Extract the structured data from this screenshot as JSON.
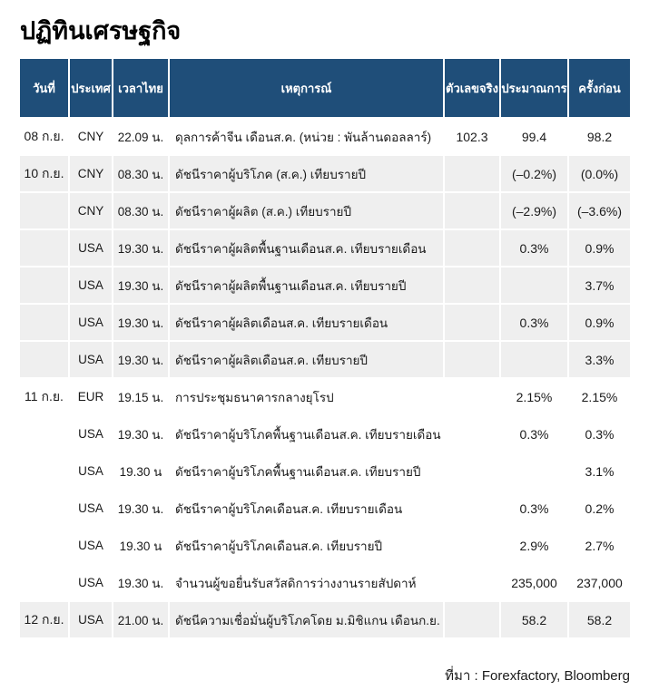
{
  "page": {
    "title": "ปฏิทินเศรษฐกิจ",
    "source_note": "ที่มา : Forexfactory, Bloomberg"
  },
  "colors": {
    "header_bg": "#1f4e79",
    "row_alt_bg": "#efefef",
    "row_bg": "#ffffff",
    "text": "#1a1a1a"
  },
  "chart_data": {
    "type": "table",
    "title": "ปฏิทินเศรษฐกิจ",
    "source": "ที่มา : Forexfactory, Bloomberg",
    "columns": [
      {
        "key": "date",
        "label": "วันที่"
      },
      {
        "key": "country",
        "label": "ประเทศ"
      },
      {
        "key": "time",
        "label": "เวลาไทย"
      },
      {
        "key": "event",
        "label": "เหตุการณ์"
      },
      {
        "key": "actual",
        "label": "ตัวเลขจริง"
      },
      {
        "key": "forecast",
        "label": "ประมาณการ"
      },
      {
        "key": "previous",
        "label": "ครั้งก่อน"
      }
    ],
    "rows": [
      {
        "date": "08 ก.ย.",
        "country": "CNY",
        "time": "22.09 น.",
        "event": "ดุลการค้าจีน เดือนส.ค. (หน่วย : พันล้านดอลลาร์)",
        "actual": "102.3",
        "forecast": "99.4",
        "previous": "98.2",
        "shaded": false
      },
      {
        "date": "10 ก.ย.",
        "country": "CNY",
        "time": "08.30 น.",
        "event": "ดัชนีราคาผู้บริโภค (ส.ค.) เทียบรายปี",
        "actual": "",
        "forecast": "(–0.2%)",
        "previous": "(0.0%)",
        "shaded": true
      },
      {
        "date": "",
        "country": "CNY",
        "time": "08.30 น.",
        "event": "ดัชนีราคาผู้ผลิต (ส.ค.) เทียบรายปี",
        "actual": "",
        "forecast": "(–2.9%)",
        "previous": "(–3.6%)",
        "shaded": true
      },
      {
        "date": "",
        "country": "USA",
        "time": "19.30 น.",
        "event": "ดัชนีราคาผู้ผลิตพื้นฐานเดือนส.ค. เทียบรายเดือน",
        "actual": "",
        "forecast": "0.3%",
        "previous": "0.9%",
        "shaded": true
      },
      {
        "date": "",
        "country": "USA",
        "time": "19.30 น.",
        "event": "ดัชนีราคาผู้ผลิตพื้นฐานเดือนส.ค. เทียบรายปี",
        "actual": "",
        "forecast": "",
        "previous": "3.7%",
        "shaded": true
      },
      {
        "date": "",
        "country": "USA",
        "time": "19.30 น.",
        "event": "ดัชนีราคาผู้ผลิตเดือนส.ค. เทียบรายเดือน",
        "actual": "",
        "forecast": "0.3%",
        "previous": "0.9%",
        "shaded": true
      },
      {
        "date": "",
        "country": "USA",
        "time": "19.30 น.",
        "event": "ดัชนีราคาผู้ผลิตเดือนส.ค. เทียบรายปี",
        "actual": "",
        "forecast": "",
        "previous": "3.3%",
        "shaded": true
      },
      {
        "date": "11 ก.ย.",
        "country": "EUR",
        "time": "19.15 น.",
        "event": "การประชุมธนาคารกลางยุโรป",
        "actual": "",
        "forecast": "2.15%",
        "previous": "2.15%",
        "shaded": false
      },
      {
        "date": "",
        "country": "USA",
        "time": "19.30 น.",
        "event": "ดัชนีราคาผู้บริโภคพื้นฐานเดือนส.ค. เทียบรายเดือน",
        "actual": "",
        "forecast": "0.3%",
        "previous": "0.3%",
        "shaded": false
      },
      {
        "date": "",
        "country": "USA",
        "time": "19.30 น",
        "event": "ดัชนีราคาผู้บริโภคพื้นฐานเดือนส.ค. เทียบรายปี",
        "actual": "",
        "forecast": "",
        "previous": "3.1%",
        "shaded": false
      },
      {
        "date": "",
        "country": "USA",
        "time": "19.30 น.",
        "event": "ดัชนีราคาผู้บริโภคเดือนส.ค. เทียบรายเดือน",
        "actual": "",
        "forecast": "0.3%",
        "previous": "0.2%",
        "shaded": false
      },
      {
        "date": "",
        "country": "USA",
        "time": "19.30 น",
        "event": "ดัชนีราคาผู้บริโภคเดือนส.ค. เทียบรายปี",
        "actual": "",
        "forecast": "2.9%",
        "previous": "2.7%",
        "shaded": false
      },
      {
        "date": "",
        "country": "USA",
        "time": "19.30 น.",
        "event": "จำนวนผู้ขอยื่นรับสวัสดิการว่างงานรายสัปดาห์",
        "actual": "",
        "forecast": "235,000",
        "previous": "237,000",
        "shaded": false
      },
      {
        "date": "12 ก.ย.",
        "country": "USA",
        "time": "21.00 น.",
        "event": "ดัชนีความเชื่อมั่นผู้บริโภคโดย ม.มิชิแกน เดือนก.ย.",
        "actual": "",
        "forecast": "58.2",
        "previous": "58.2",
        "shaded": true
      }
    ]
  }
}
